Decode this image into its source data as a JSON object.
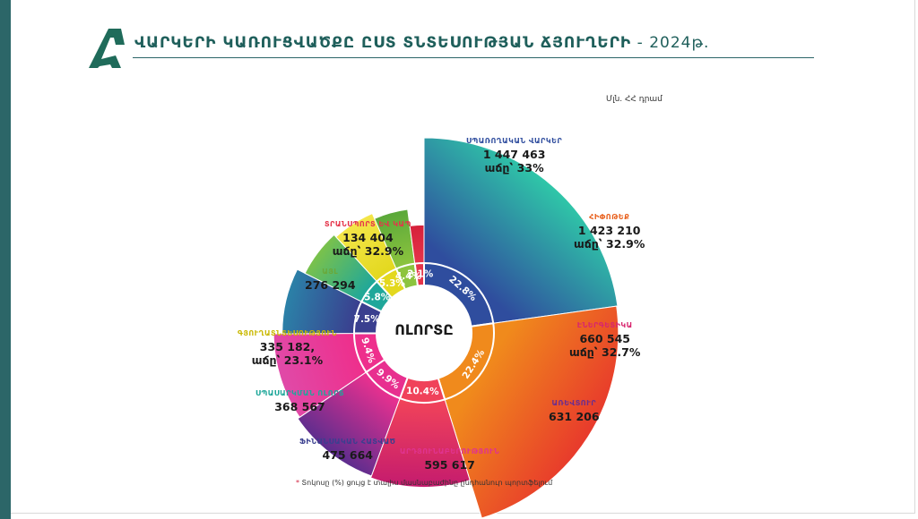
{
  "header": {
    "title": "ՎԱՐԿԵՐԻ ԿԱՌՈՒՑՎԱԾՔԸ ԸՍՏ ՏՆՏԵՍՈՒԹՅԱՆ ՃՅՈՒՂԵՐԻ",
    "year": " - 2024թ.",
    "units": "Մլն. ՀՀ դրամ"
  },
  "footnote": {
    "star": "*",
    "text": " Տոկոսը (%) ցույց է տալիս մասնաբաժինը ընդհանուր պորտֆելում"
  },
  "chart_data": {
    "type": "pie",
    "subtype": "variable-radius rose with inner ring",
    "center_label": "ՈԼՈՐՏԸ",
    "sectors": [
      {
        "name": "ՍՊԱՌՈՂԱԿԱՆ ՎԱՐԿԵՐ",
        "value_text": "1 447 463",
        "value": 1447463,
        "growth_text": "աճը՝ 33%",
        "share_text": "22.8%",
        "share": 22.8,
        "color": "#2f4d9e",
        "color2": "#2fc7a8"
      },
      {
        "name": "ՀԻՓՈԹԵՔ",
        "value_text": "1 423 210",
        "value": 1423210,
        "growth_text": "աճը՝ 32.9%",
        "share_text": "22.4%",
        "share": 22.4,
        "color": "#f08a1c",
        "color2": "#e83a2c"
      },
      {
        "name": "ԷՆԵՐԳԵՏԻԿԱ",
        "value_text": "660 545",
        "value": 660545,
        "growth_text": "աճը՝ 32.7%",
        "share_text": "10.4%",
        "share": 10.4,
        "color": "#f0425a",
        "color2": "#c41b6e"
      },
      {
        "name": "ԱՌԵՎՏՈՒՐ",
        "value_text": "631 206",
        "value": 631206,
        "growth_text": "",
        "share_text": "9.9%",
        "share": 9.9,
        "color": "#e8308f",
        "color2": "#5b2d8e"
      },
      {
        "name": "ԱՐԴՅՈՒՆԱԲԵՐՈՒԹՅՈՒՆ",
        "value_text": "595 617",
        "value": 595617,
        "growth_text": "",
        "share_text": "9.4%",
        "share": 9.4,
        "color": "#ee2f8c",
        "color2": "#e04aa8"
      },
      {
        "name": "ՖԻՆԱՆՍԱԿԱՆ ՀԱՏՎԱԾ",
        "value_text": "475 664",
        "value": 475664,
        "growth_text": "",
        "share_text": "7.5%",
        "share": 7.5,
        "color": "#3a3f8f",
        "color2": "#2b82a8"
      },
      {
        "name": "ՍՊԱՍԱՐԿՄԱՆ ՈԼՈՐՏ",
        "value_text": "368 567",
        "value": 368567,
        "growth_text": "",
        "share_text": "5.8%",
        "share": 5.8,
        "color": "#1fa79a",
        "color2": "#7bc24a"
      },
      {
        "name": "ԳՅՈՒՂԱՏՆՏԵՍՈՒԹՅՈՒՆ",
        "value_text": "335 182,",
        "value": 335182,
        "growth_text": "աճը՝ 23.1%",
        "share_text": "5.3%",
        "share": 5.3,
        "color": "#e3d81e",
        "color2": "#f4e64a"
      },
      {
        "name": "ԱՅԼ",
        "value_text": "276 294",
        "value": 276294,
        "growth_text": "",
        "share_text": "4.4%",
        "share": 4.4,
        "color": "#8cc43e",
        "color2": "#5aa83a"
      },
      {
        "name": "ՏՐԱՆՍՊՈՐՏ ԵՎ ԿԱՊ",
        "value_text": "134 404",
        "value": 134404,
        "growth_text": "աճը՝ 32.9%",
        "share_text": "2.1%",
        "share": 2.1,
        "color": "#e5344a",
        "color2": "#d6203a"
      }
    ]
  }
}
